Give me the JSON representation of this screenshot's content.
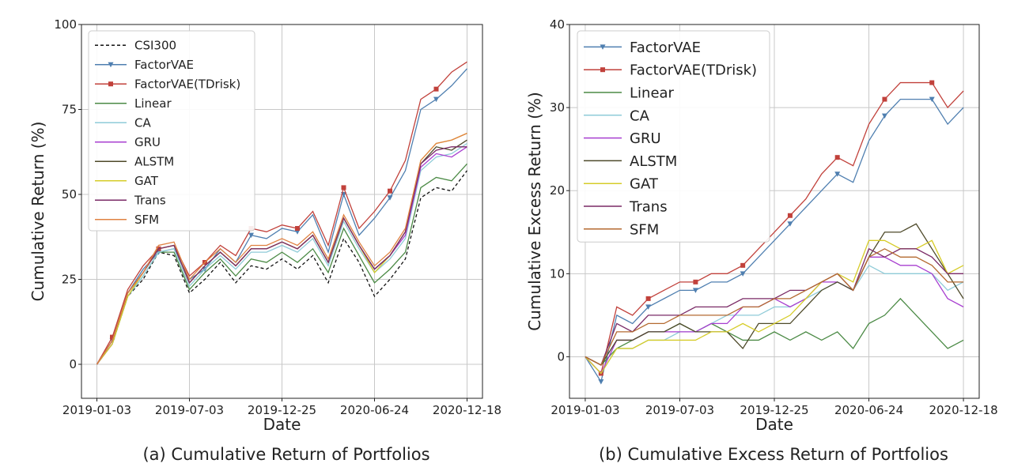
{
  "chart_data": [
    {
      "type": "line",
      "caption": "(a) Cumulative Return of Portfolios",
      "xlabel": "Date",
      "ylabel": "Cumulative Return (%)",
      "ylim": [
        -10,
        100
      ],
      "yticks": [
        0,
        25,
        50,
        75,
        100
      ],
      "xticks": [
        "2019-01-03",
        "2019-07-03",
        "2019-12-25",
        "2020-06-24",
        "2020-12-18"
      ],
      "grid": true,
      "legend_position": "upper-left",
      "x": [
        0,
        4,
        8,
        12,
        16,
        20,
        24,
        28,
        32,
        36,
        40,
        44,
        48,
        52,
        56,
        60,
        64,
        68,
        72,
        76,
        80,
        84,
        88,
        92,
        96
      ],
      "series": [
        {
          "name": "CSI300",
          "color": "#111111",
          "dashed": true,
          "marker": "none",
          "values": [
            0,
            6,
            20,
            25,
            33,
            32,
            21,
            25,
            30,
            24,
            29,
            28,
            31,
            28,
            32,
            24,
            37,
            30,
            20,
            25,
            31,
            49,
            52,
            51,
            57
          ]
        },
        {
          "name": "FactorVAE",
          "color": "#4f7fb0",
          "marker": "triangle",
          "values": [
            0,
            7,
            21,
            28,
            33,
            34,
            25,
            28,
            34,
            30,
            38,
            37,
            40,
            39,
            44,
            33,
            50,
            38,
            43,
            49,
            57,
            75,
            78,
            82,
            87
          ]
        },
        {
          "name": "FactorVAE(TDrisk)",
          "color": "#c1413b",
          "marker": "square",
          "values": [
            0,
            8,
            22,
            29,
            34,
            35,
            26,
            30,
            35,
            32,
            40,
            39,
            41,
            40,
            45,
            35,
            52,
            40,
            45,
            51,
            60,
            78,
            81,
            86,
            89
          ]
        },
        {
          "name": "Linear",
          "color": "#4b8a45",
          "marker": "none",
          "values": [
            0,
            6,
            20,
            26,
            33,
            33,
            22,
            27,
            31,
            26,
            31,
            30,
            33,
            30,
            34,
            27,
            40,
            32,
            24,
            28,
            33,
            52,
            55,
            54,
            59
          ]
        },
        {
          "name": "CA",
          "color": "#8fcbd8",
          "marker": "none",
          "values": [
            0,
            6,
            20,
            26,
            33,
            34,
            23,
            28,
            32,
            28,
            33,
            33,
            35,
            33,
            37,
            29,
            42,
            34,
            27,
            31,
            37,
            57,
            61,
            62,
            65
          ]
        },
        {
          "name": "GRU",
          "color": "#a83fd0",
          "marker": "none",
          "values": [
            0,
            6,
            21,
            27,
            34,
            35,
            24,
            29,
            33,
            29,
            34,
            34,
            36,
            34,
            38,
            30,
            43,
            35,
            28,
            32,
            38,
            58,
            62,
            61,
            64
          ]
        },
        {
          "name": "ALSTM",
          "color": "#4e4a2a",
          "marker": "none",
          "values": [
            0,
            7,
            21,
            27,
            34,
            35,
            24,
            29,
            33,
            29,
            34,
            34,
            36,
            34,
            38,
            30,
            43,
            35,
            28,
            32,
            39,
            59,
            64,
            63,
            66
          ]
        },
        {
          "name": "GAT",
          "color": "#d6cc28",
          "marker": "none",
          "values": [
            0,
            6,
            20,
            27,
            34,
            35,
            24,
            29,
            33,
            29,
            34,
            34,
            36,
            34,
            38,
            30,
            43,
            35,
            27,
            32,
            39,
            60,
            65,
            66,
            68
          ]
        },
        {
          "name": "Trans",
          "color": "#7a2a66",
          "marker": "none",
          "values": [
            0,
            7,
            21,
            27,
            34,
            35,
            24,
            29,
            33,
            29,
            34,
            34,
            36,
            34,
            38,
            30,
            43,
            35,
            28,
            32,
            39,
            59,
            63,
            64,
            64
          ]
        },
        {
          "name": "SFM",
          "color": "#e08242",
          "marker": "none",
          "values": [
            0,
            7,
            21,
            27,
            35,
            36,
            25,
            30,
            34,
            30,
            35,
            35,
            37,
            35,
            39,
            31,
            44,
            36,
            29,
            33,
            40,
            60,
            65,
            66,
            68
          ]
        }
      ]
    },
    {
      "type": "line",
      "caption": "(b) Cumulative Excess Return of Portfolios",
      "xlabel": "Date",
      "ylabel": "Cumulative Excess Return (%)",
      "ylim": [
        -5,
        40
      ],
      "yticks": [
        0,
        10,
        20,
        30,
        40
      ],
      "xticks": [
        "2019-01-03",
        "2019-07-03",
        "2019-12-25",
        "2020-06-24",
        "2020-12-18"
      ],
      "grid": true,
      "legend_position": "upper-left",
      "x": [
        0,
        4,
        8,
        12,
        16,
        20,
        24,
        28,
        32,
        36,
        40,
        44,
        48,
        52,
        56,
        60,
        64,
        68,
        72,
        76,
        80,
        84,
        88,
        92,
        96
      ],
      "series": [
        {
          "name": "FactorVAE",
          "color": "#4f7fb0",
          "marker": "triangle",
          "values": [
            0,
            -3,
            5,
            4,
            6,
            7,
            8,
            8,
            9,
            9,
            10,
            12,
            14,
            16,
            18,
            20,
            22,
            21,
            26,
            29,
            31,
            31,
            31,
            28,
            30
          ]
        },
        {
          "name": "FactorVAE(TDrisk)",
          "color": "#c1413b",
          "marker": "square",
          "values": [
            0,
            -2,
            6,
            5,
            7,
            8,
            9,
            9,
            10,
            10,
            11,
            13,
            15,
            17,
            19,
            22,
            24,
            23,
            28,
            31,
            33,
            33,
            33,
            30,
            32
          ]
        },
        {
          "name": "Linear",
          "color": "#4b8a45",
          "marker": "none",
          "values": [
            0,
            -1,
            1,
            2,
            3,
            3,
            4,
            3,
            4,
            3,
            2,
            2,
            3,
            2,
            3,
            2,
            3,
            1,
            4,
            5,
            7,
            5,
            3,
            1,
            2
          ]
        },
        {
          "name": "CA",
          "color": "#8fcbd8",
          "marker": "none",
          "values": [
            0,
            -2,
            1,
            1,
            2,
            2,
            3,
            3,
            4,
            5,
            5,
            5,
            6,
            6,
            7,
            8,
            9,
            8,
            11,
            10,
            10,
            10,
            10,
            8,
            9
          ]
        },
        {
          "name": "GRU",
          "color": "#a83fd0",
          "marker": "none",
          "values": [
            0,
            -2,
            2,
            2,
            3,
            3,
            3,
            3,
            4,
            4,
            6,
            6,
            7,
            6,
            7,
            9,
            9,
            8,
            12,
            12,
            11,
            11,
            10,
            7,
            6
          ]
        },
        {
          "name": "ALSTM",
          "color": "#4e4a2a",
          "marker": "none",
          "values": [
            0,
            -1,
            2,
            2,
            3,
            3,
            4,
            3,
            3,
            3,
            1,
            4,
            4,
            4,
            6,
            8,
            9,
            8,
            12,
            15,
            15,
            16,
            13,
            10,
            7
          ]
        },
        {
          "name": "GAT",
          "color": "#d6cc28",
          "marker": "none",
          "values": [
            0,
            -2,
            1,
            1,
            2,
            2,
            2,
            2,
            3,
            3,
            4,
            3,
            4,
            5,
            7,
            9,
            10,
            9,
            14,
            14,
            13,
            13,
            14,
            10,
            11
          ]
        },
        {
          "name": "Trans",
          "color": "#7a2a66",
          "marker": "none",
          "values": [
            0,
            -1,
            4,
            3,
            5,
            5,
            5,
            6,
            6,
            6,
            7,
            7,
            7,
            8,
            8,
            9,
            10,
            8,
            13,
            12,
            13,
            13,
            12,
            10,
            10
          ]
        },
        {
          "name": "SFM",
          "color": "#b46a30",
          "marker": "none",
          "values": [
            0,
            -1,
            3,
            3,
            4,
            4,
            5,
            5,
            5,
            5,
            6,
            6,
            7,
            7,
            8,
            9,
            10,
            8,
            12,
            13,
            12,
            12,
            11,
            9,
            9
          ]
        }
      ]
    }
  ]
}
